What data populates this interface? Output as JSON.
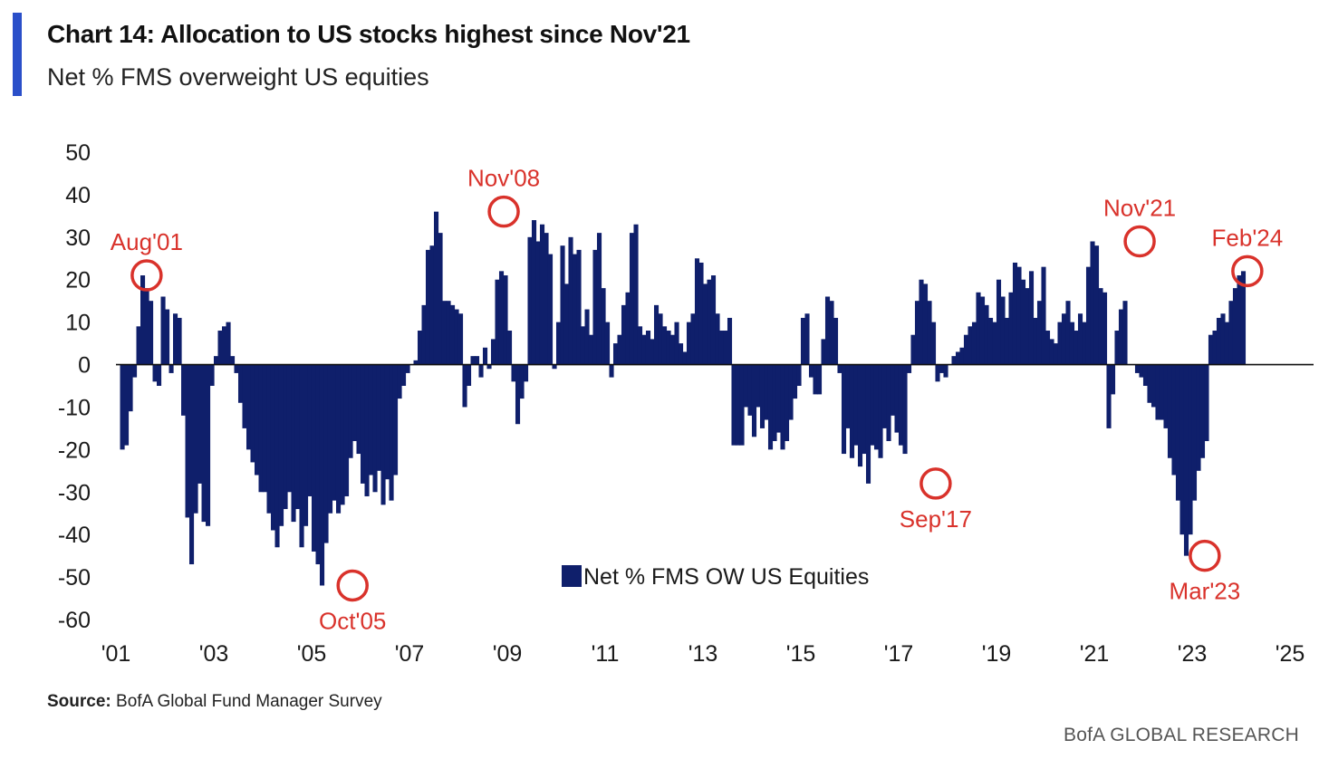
{
  "header": {
    "title": "Chart 14: Allocation to US stocks highest since Nov'21",
    "subtitle": "Net % FMS overweight US equities",
    "accent_color": "#2a4fc9"
  },
  "footer": {
    "source_label": "Source:",
    "source_text": "BofA Global Fund Manager Survey",
    "brand": "BofA GLOBAL RESEARCH"
  },
  "chart_data": {
    "type": "bar",
    "title": "Chart 14: Allocation to US stocks highest since Nov'21",
    "subtitle": "Net % FMS overweight US equities",
    "xlabel": "",
    "ylabel": "",
    "ylim": [
      -60,
      50
    ],
    "yticks": [
      50,
      40,
      30,
      20,
      10,
      0,
      -10,
      -20,
      -30,
      -40,
      -50,
      -60
    ],
    "xlim": [
      2001,
      2025
    ],
    "xticks": [
      {
        "value": 2001,
        "label": "'01"
      },
      {
        "value": 2003,
        "label": "'03"
      },
      {
        "value": 2005,
        "label": "'05"
      },
      {
        "value": 2007,
        "label": "'07"
      },
      {
        "value": 2009,
        "label": "'09"
      },
      {
        "value": 2011,
        "label": "'11"
      },
      {
        "value": 2013,
        "label": "'13"
      },
      {
        "value": 2015,
        "label": "'15"
      },
      {
        "value": 2017,
        "label": "'17"
      },
      {
        "value": 2019,
        "label": "'19"
      },
      {
        "value": 2021,
        "label": "'21"
      },
      {
        "value": 2023,
        "label": "'23"
      },
      {
        "value": 2025,
        "label": "'25"
      }
    ],
    "grid": false,
    "legend": {
      "position": "lower-center",
      "entries": [
        "Net % FMS OW US Equities"
      ]
    },
    "bar_color": "#0f1f6b",
    "annotation_color": "#d9322b",
    "series": [
      {
        "name": "Net % FMS OW US Equities",
        "x_start": 2001.0,
        "x_step": 0.08333,
        "values": [
          0,
          -20,
          -19,
          -11,
          -3,
          9,
          21,
          18,
          15,
          -4,
          -5,
          16,
          13,
          -2,
          12,
          11,
          -12,
          -36,
          -47,
          -35,
          -28,
          -37,
          -38,
          -5,
          2,
          8,
          9,
          10,
          2,
          -2,
          -9,
          -15,
          -20,
          -23,
          -26,
          -30,
          -30,
          -35,
          -39,
          -43,
          -38,
          -34,
          -30,
          -37,
          -34,
          -43,
          -38,
          -31,
          -44,
          -47,
          -52,
          -42,
          -35,
          -32,
          -35,
          -33,
          -31,
          -22,
          -18,
          -21,
          -28,
          -31,
          -26,
          -30,
          -25,
          -33,
          -27,
          -32,
          -26,
          -8,
          -5,
          -2,
          0,
          1,
          8,
          14,
          27,
          28,
          36,
          31,
          15,
          15,
          14,
          13,
          12,
          -10,
          -5,
          2,
          2,
          -3,
          4,
          -1,
          6,
          20,
          22,
          21,
          8,
          -4,
          -14,
          -8,
          -4,
          30,
          34,
          29,
          33,
          31,
          26,
          -1,
          10,
          28,
          19,
          30,
          26,
          27,
          9,
          13,
          7,
          27,
          31,
          18,
          10,
          -3,
          5,
          7,
          14,
          17,
          31,
          33,
          9,
          7,
          8,
          6,
          14,
          12,
          9,
          8,
          7,
          10,
          5,
          3,
          10,
          12,
          25,
          24,
          19,
          20,
          21,
          12,
          8,
          8,
          11,
          -19,
          -19,
          -19,
          -10,
          -12,
          -17,
          -10,
          -15,
          -13,
          -20,
          -18,
          -16,
          -20,
          -18,
          -13,
          -8,
          -5,
          11,
          12,
          -3,
          -7,
          -7,
          6,
          16,
          15,
          11,
          -2,
          -21,
          -15,
          -22,
          -19,
          -24,
          -21,
          -28,
          -19,
          -20,
          -22,
          -15,
          -18,
          -12,
          -16,
          -19,
          -21,
          -2,
          7,
          15,
          20,
          19,
          15,
          10,
          -4,
          -2,
          -3,
          0,
          2,
          3,
          4,
          7,
          9,
          10,
          17,
          16,
          14,
          11,
          10,
          20,
          16,
          11,
          17,
          24,
          23,
          20,
          18,
          22,
          11,
          15,
          23,
          8,
          6,
          5,
          10,
          12,
          15,
          10,
          8,
          12,
          10,
          23,
          29,
          28,
          18,
          17,
          -15,
          -7,
          8,
          13,
          15,
          0,
          0,
          -2,
          -3,
          -5,
          -9,
          -10,
          -13,
          -13,
          -15,
          -22,
          -26,
          -32,
          -40,
          -45,
          -40,
          -32,
          -25,
          -22,
          -18,
          7,
          8,
          11,
          12,
          10,
          15,
          18,
          21,
          22
        ]
      }
    ],
    "annotations": [
      {
        "label": "Aug'01",
        "x": 2001.58,
        "y": 21
      },
      {
        "label": "Oct'05",
        "x": 2005.79,
        "y": -52
      },
      {
        "label": "Nov'08",
        "x": 2008.88,
        "y": 36
      },
      {
        "label": "Sep'17",
        "x": 2017.71,
        "y": -28
      },
      {
        "label": "Nov'21",
        "x": 2021.88,
        "y": 29
      },
      {
        "label": "Mar'23",
        "x": 2023.21,
        "y": -45
      },
      {
        "label": "Feb'24",
        "x": 2024.08,
        "y": 22
      }
    ]
  }
}
